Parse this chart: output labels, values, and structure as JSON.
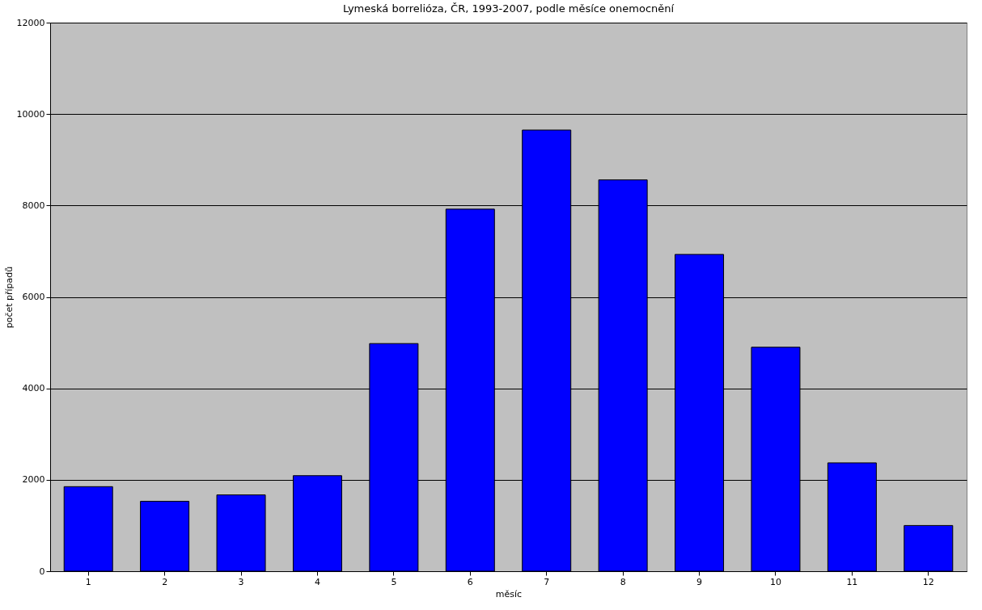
{
  "chart_data": {
    "type": "bar",
    "title": "Lymeská borrelióza, ČR, 1993-2007, podle měsíce onemocnění",
    "xlabel": "měsíc",
    "ylabel": "počet případů",
    "categories": [
      "1",
      "2",
      "3",
      "4",
      "5",
      "6",
      "7",
      "8",
      "9",
      "10",
      "11",
      "12"
    ],
    "values": [
      1850,
      1530,
      1670,
      2090,
      4980,
      7920,
      9650,
      8560,
      6930,
      4900,
      2370,
      1000
    ],
    "color": "#0000ff",
    "ylim": [
      0,
      12000
    ],
    "yticks": [
      0,
      2000,
      4000,
      6000,
      8000,
      10000,
      12000
    ],
    "grid": "y"
  }
}
